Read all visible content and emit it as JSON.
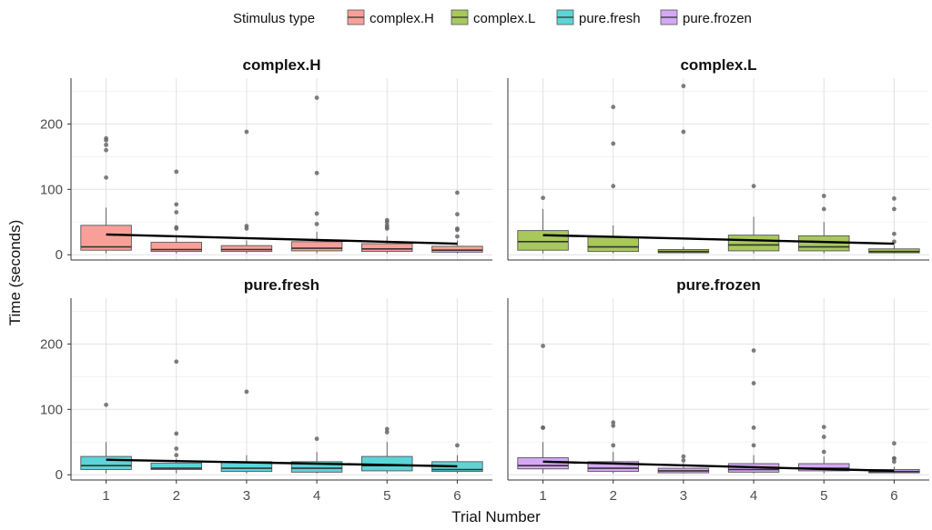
{
  "chart_data": {
    "type": "box",
    "legend": {
      "title": "Stimulus type",
      "placement": "top",
      "entries": [
        {
          "name": "complex.H",
          "color": "#F8A098"
        },
        {
          "name": "complex.L",
          "color": "#A8C85C"
        },
        {
          "name": "pure.fresh",
          "color": "#5CD4D8"
        },
        {
          "name": "pure.frozen",
          "color": "#D4A8F4"
        }
      ]
    },
    "xlabel": "Trial Number",
    "ylabel": "Time (seconds)",
    "x_ticks": [
      "1",
      "2",
      "3",
      "4",
      "5",
      "6"
    ],
    "y_ticks": [
      0,
      100,
      200
    ],
    "ylim": [
      -8,
      270
    ],
    "grid": true,
    "panels": [
      {
        "title": "complex.H",
        "color": "#F8A098",
        "boxes": [
          {
            "x": 1,
            "q1": 7,
            "median": 12,
            "q3": 45,
            "whisker_low": 2,
            "whisker_high": 72,
            "outliers": [
              118,
              160,
              168,
              175,
              178
            ]
          },
          {
            "x": 2,
            "q1": 5,
            "median": 8,
            "q3": 19,
            "whisker_low": 2,
            "whisker_high": 30,
            "outliers": [
              40,
              42,
              65,
              77,
              127
            ]
          },
          {
            "x": 3,
            "q1": 5,
            "median": 8,
            "q3": 14,
            "whisker_low": 2,
            "whisker_high": 22,
            "outliers": [
              40,
              44,
              188
            ]
          },
          {
            "x": 4,
            "q1": 6,
            "median": 10,
            "q3": 20,
            "whisker_low": 2,
            "whisker_high": 35,
            "outliers": [
              47,
              63,
              125,
              240
            ]
          },
          {
            "x": 5,
            "q1": 5,
            "median": 9,
            "q3": 17,
            "whisker_low": 2,
            "whisker_high": 28,
            "outliers": [
              40,
              42,
              45,
              50,
              53
            ]
          },
          {
            "x": 6,
            "q1": 4,
            "median": 7,
            "q3": 13,
            "whisker_low": 2,
            "whisker_high": 22,
            "outliers": [
              28,
              38,
              40,
              62,
              95
            ]
          }
        ],
        "trend": [
          31,
          17
        ]
      },
      {
        "title": "complex.L",
        "color": "#A8C85C",
        "boxes": [
          {
            "x": 1,
            "q1": 7,
            "median": 20,
            "q3": 37,
            "whisker_low": 2,
            "whisker_high": 70,
            "outliers": [
              87
            ]
          },
          {
            "x": 2,
            "q1": 5,
            "median": 12,
            "q3": 27,
            "whisker_low": 2,
            "whisker_high": 45,
            "outliers": [
              105,
              170,
              226
            ]
          },
          {
            "x": 3,
            "q1": 3,
            "median": 5,
            "q3": 8,
            "whisker_low": 2,
            "whisker_high": 12,
            "outliers": [
              188,
              258
            ]
          },
          {
            "x": 4,
            "q1": 6,
            "median": 15,
            "q3": 30,
            "whisker_low": 2,
            "whisker_high": 58,
            "outliers": [
              105
            ]
          },
          {
            "x": 5,
            "q1": 6,
            "median": 12,
            "q3": 29,
            "whisker_low": 2,
            "whisker_high": 50,
            "outliers": [
              70,
              90
            ]
          },
          {
            "x": 6,
            "q1": 3,
            "median": 5,
            "q3": 9,
            "whisker_low": 2,
            "whisker_high": 15,
            "outliers": [
              20,
              32,
              70,
              86
            ]
          }
        ],
        "trend": [
          30,
          17
        ]
      },
      {
        "title": "pure.fresh",
        "color": "#5CD4D8",
        "boxes": [
          {
            "x": 1,
            "q1": 8,
            "median": 14,
            "q3": 28,
            "whisker_low": 2,
            "whisker_high": 50,
            "outliers": [
              107
            ]
          },
          {
            "x": 2,
            "q1": 8,
            "median": 10,
            "q3": 18,
            "whisker_low": 2,
            "whisker_high": 25,
            "outliers": [
              30,
              40,
              63,
              173
            ]
          },
          {
            "x": 3,
            "q1": 5,
            "median": 10,
            "q3": 20,
            "whisker_low": 2,
            "whisker_high": 30,
            "outliers": [
              127
            ]
          },
          {
            "x": 4,
            "q1": 4,
            "median": 10,
            "q3": 20,
            "whisker_low": 2,
            "whisker_high": 35,
            "outliers": [
              55
            ]
          },
          {
            "x": 5,
            "q1": 6,
            "median": 14,
            "q3": 28,
            "whisker_low": 2,
            "whisker_high": 50,
            "outliers": [
              65,
              70
            ]
          },
          {
            "x": 6,
            "q1": 5,
            "median": 8,
            "q3": 20,
            "whisker_low": 2,
            "whisker_high": 30,
            "outliers": [
              45
            ]
          }
        ],
        "trend": [
          23,
          13
        ]
      },
      {
        "title": "pure.frozen",
        "color": "#D4A8F4",
        "boxes": [
          {
            "x": 1,
            "q1": 9,
            "median": 14,
            "q3": 26,
            "whisker_low": 2,
            "whisker_high": 50,
            "outliers": [
              72,
              72,
              197
            ]
          },
          {
            "x": 2,
            "q1": 5,
            "median": 10,
            "q3": 20,
            "whisker_low": 2,
            "whisker_high": 35,
            "outliers": [
              45,
              75,
              80
            ]
          },
          {
            "x": 3,
            "q1": 3,
            "median": 6,
            "q3": 10,
            "whisker_low": 2,
            "whisker_high": 18,
            "outliers": [
              22,
              28
            ]
          },
          {
            "x": 4,
            "q1": 4,
            "median": 8,
            "q3": 17,
            "whisker_low": 2,
            "whisker_high": 30,
            "outliers": [
              45,
              72,
              140,
              190
            ]
          },
          {
            "x": 5,
            "q1": 6,
            "median": 10,
            "q3": 17,
            "whisker_low": 2,
            "whisker_high": 28,
            "outliers": [
              35,
              58,
              73
            ]
          },
          {
            "x": 6,
            "q1": 3,
            "median": 5,
            "q3": 8,
            "whisker_low": 2,
            "whisker_high": 12,
            "outliers": [
              20,
              25,
              25,
              48
            ]
          }
        ],
        "trend": [
          20,
          6
        ]
      }
    ]
  }
}
